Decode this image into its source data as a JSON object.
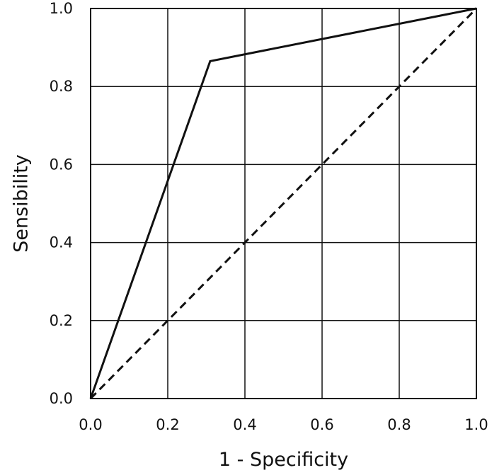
{
  "chart_data": {
    "type": "line",
    "title": "",
    "xlabel": "1 - Specificity",
    "ylabel": "Sensibility",
    "xlim": [
      0,
      1
    ],
    "ylim": [
      0,
      1
    ],
    "grid": true,
    "x_ticks": [
      "0.0",
      "0.2",
      "0.4",
      "0.6",
      "0.8",
      "1.0"
    ],
    "y_ticks": [
      "0.0",
      "0.2",
      "0.4",
      "0.6",
      "0.8",
      "1.0"
    ],
    "series": [
      {
        "style": "solid",
        "color": "#111111",
        "x": [
          0.0,
          0.31,
          1.0
        ],
        "y": [
          0.0,
          0.865,
          1.0
        ]
      },
      {
        "style": "dashed",
        "color": "#111111",
        "x": [
          0.0,
          1.0
        ],
        "y": [
          0.0,
          1.0
        ]
      }
    ]
  }
}
